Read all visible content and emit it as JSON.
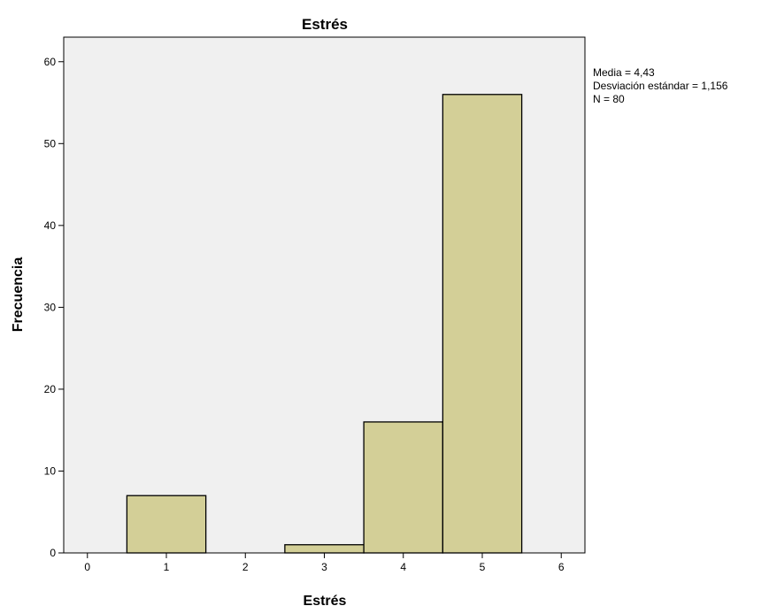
{
  "chart_data": {
    "type": "bar",
    "title": "Estrés",
    "xlabel": "Estrés",
    "ylabel": "Frecuencia",
    "xlim": [
      -0.3,
      6.3
    ],
    "ylim": [
      0,
      63
    ],
    "x_ticks": [
      0,
      1,
      2,
      3,
      4,
      5,
      6
    ],
    "y_ticks": [
      0,
      10,
      20,
      30,
      40,
      50,
      60
    ],
    "bin_width": 1,
    "bins": [
      {
        "center": 1,
        "value": 7
      },
      {
        "center": 3,
        "value": 1
      },
      {
        "center": 4,
        "value": 16
      },
      {
        "center": 5,
        "value": 56
      }
    ],
    "grid": false,
    "legend": "none",
    "bar_color": "#d3cf97",
    "plot_background": "#f0f0f0",
    "stats": [
      "Media = 4,43",
      "Desviación estándar = 1,156",
      "N = 80"
    ]
  }
}
